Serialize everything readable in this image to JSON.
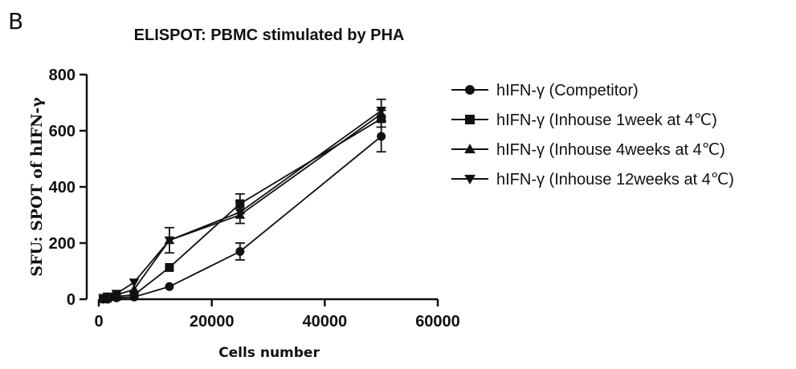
{
  "panel_label": "B",
  "chart_data": {
    "type": "line",
    "title": "ELISPOT: PBMC stimulated by PHA",
    "xlabel": "Cells number",
    "ylabel": "SFU: SPOT of hIFN-γ",
    "xlim": [
      0,
      60000
    ],
    "ylim": [
      0,
      800
    ],
    "x_ticks": [
      0,
      20000,
      40000,
      60000
    ],
    "y_ticks": [
      0,
      200,
      400,
      600,
      800
    ],
    "grid": false,
    "legend_position": "right",
    "x": [
      781,
      1563,
      3125,
      6250,
      12500,
      25000,
      50000
    ],
    "series": [
      {
        "name": "hIFN-γ (Competitor)",
        "marker": "circle",
        "values": [
          0,
          0,
          5,
          8,
          45,
          170,
          580
        ],
        "errors": [
          0,
          0,
          0,
          0,
          0,
          30,
          55
        ]
      },
      {
        "name": "hIFN-γ (Inhouse 1week at 4℃)",
        "marker": "square",
        "values": [
          2,
          5,
          10,
          15,
          113,
          340,
          643
        ],
        "errors": [
          0,
          0,
          0,
          0,
          0,
          35,
          30
        ]
      },
      {
        "name": "hIFN-γ (Inhouse 4weeks at 4℃)",
        "marker": "triangle-up",
        "values": [
          3,
          8,
          15,
          35,
          210,
          300,
          660
        ],
        "errors": [
          0,
          0,
          0,
          0,
          0,
          0,
          0
        ]
      },
      {
        "name": "hIFN-γ (Inhouse 12weeks at 4℃)",
        "marker": "triangle-down",
        "values": [
          5,
          10,
          20,
          60,
          210,
          310,
          672
        ],
        "errors": [
          0,
          0,
          0,
          0,
          45,
          40,
          40
        ]
      }
    ],
    "colors": {
      "line": "#111111"
    }
  }
}
